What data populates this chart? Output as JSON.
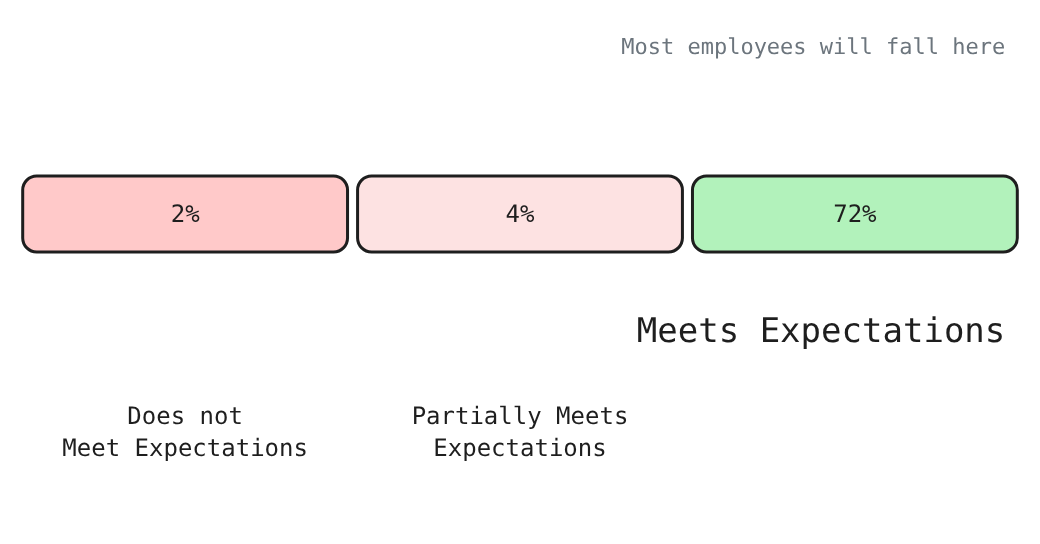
{
  "chart_data": {
    "type": "other",
    "categories": [
      "Does not Meet Expectations",
      "Partially Meets Expectations",
      "Meets Expectations"
    ],
    "values": [
      2,
      4,
      72
    ],
    "value_labels": [
      "2%",
      "4%",
      "72%"
    ],
    "colors": [
      "#ffc9c9",
      "#fde2e2",
      "#b2f2bb"
    ],
    "annotations": [
      {
        "text": "Most employees will fall here",
        "x": "Meets Expectations"
      }
    ]
  }
}
